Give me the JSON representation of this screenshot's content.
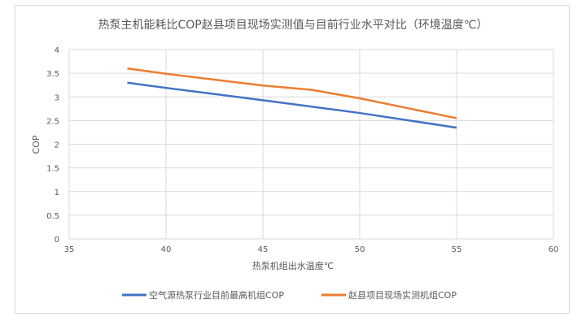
{
  "chart_data": {
    "type": "line",
    "title": "热泵主机能耗比COP赵县项目现场实测值与目前行业水平对比（环境温度℃）",
    "xlabel": "热泵机组出水温度℃",
    "ylabel": "COP",
    "xlim": [
      35,
      60
    ],
    "ylim": [
      0,
      4
    ],
    "xticks": [
      "35",
      "40",
      "45",
      "50",
      "55",
      "60"
    ],
    "yticks": [
      "0",
      "0.5",
      "1",
      "1.5",
      "2",
      "2.5",
      "3",
      "3.5",
      "4"
    ],
    "grid": true,
    "legend": "bottom",
    "series": [
      {
        "name": "空气源热泵行业目前最高机组COP",
        "color": "#4472c4",
        "x": [
          38,
          40,
          45,
          50,
          55
        ],
        "y": [
          3.3,
          3.19,
          2.93,
          2.66,
          2.35
        ]
      },
      {
        "name": "赵县项目现场实测机组COP",
        "color": "#ed7d31",
        "x": [
          38,
          40,
          45,
          47.5,
          50,
          55
        ],
        "y": [
          3.6,
          3.49,
          3.24,
          3.15,
          2.97,
          2.55
        ]
      }
    ]
  }
}
